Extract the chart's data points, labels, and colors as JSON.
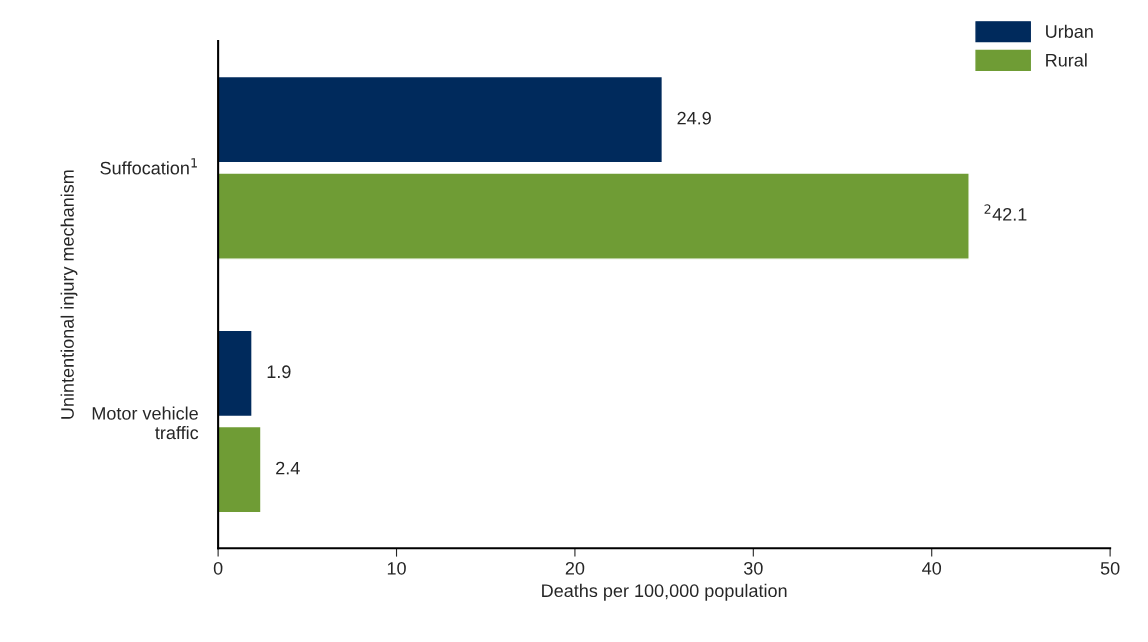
{
  "chart_data": {
    "type": "bar",
    "orientation": "horizontal",
    "categories": [
      "Suffocation$^{1}$",
      "Motor vehicle\ntraffic"
    ],
    "series": [
      {
        "name": "Urban",
        "color": "#002a5c",
        "values": [
          24.9,
          1.9
        ],
        "value_labels": [
          "24.9",
          "1.9"
        ]
      },
      {
        "name": "Rural",
        "color": "#6f9c35",
        "values": [
          42.1,
          2.4
        ],
        "value_labels": [
          "$^{2}$42.1",
          "2.4"
        ]
      }
    ],
    "xlabel": "Deaths per 100,000 population",
    "ylabel": "Unintentional injury mechanism",
    "xlim": [
      0,
      50
    ],
    "xticks": [
      0,
      10,
      20,
      30,
      40,
      50
    ],
    "grid": false,
    "legend": "top right"
  }
}
